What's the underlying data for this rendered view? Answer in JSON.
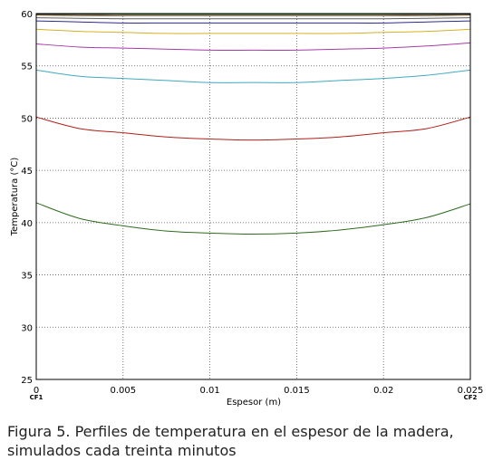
{
  "chart_data": {
    "type": "line",
    "xlabel": "Espesor (m)",
    "ylabel": "Temperatura (°C)",
    "xlim": [
      0,
      0.025
    ],
    "ylim": [
      25,
      60
    ],
    "x_ticks": [
      "0",
      "0.005",
      "0.01",
      "0.015",
      "0.02",
      "0.025"
    ],
    "y_ticks": [
      "25",
      "30",
      "35",
      "40",
      "45",
      "50",
      "55",
      "60"
    ],
    "x_end_labels": [
      "CF1",
      "CF2"
    ],
    "grid": "dotted",
    "x": [
      0,
      0.0025,
      0.005,
      0.0075,
      0.01,
      0.0125,
      0.015,
      0.0175,
      0.02,
      0.0225,
      0.025
    ],
    "series": [
      {
        "color": "#2e6b1e",
        "values": [
          41.9,
          40.4,
          39.7,
          39.2,
          39.0,
          38.9,
          39.0,
          39.3,
          39.8,
          40.5,
          41.8
        ]
      },
      {
        "color": "#b0201a",
        "values": [
          50.1,
          49.0,
          48.6,
          48.2,
          48.0,
          47.9,
          48.0,
          48.2,
          48.6,
          49.0,
          50.1
        ]
      },
      {
        "color": "#3fa9c0",
        "values": [
          54.6,
          54.0,
          53.8,
          53.6,
          53.4,
          53.4,
          53.4,
          53.6,
          53.8,
          54.1,
          54.6
        ]
      },
      {
        "color": "#a83aa8",
        "values": [
          57.1,
          56.8,
          56.7,
          56.6,
          56.5,
          56.5,
          56.5,
          56.6,
          56.7,
          56.9,
          57.2
        ]
      },
      {
        "color": "#d6b21f",
        "values": [
          58.5,
          58.3,
          58.2,
          58.1,
          58.1,
          58.1,
          58.1,
          58.1,
          58.2,
          58.3,
          58.5
        ]
      },
      {
        "color": "#2b2b8c",
        "values": [
          59.3,
          59.2,
          59.1,
          59.1,
          59.1,
          59.1,
          59.1,
          59.1,
          59.1,
          59.2,
          59.3
        ]
      },
      {
        "color": "#5e5e5e",
        "values": [
          59.6,
          59.55,
          59.5,
          59.5,
          59.5,
          59.5,
          59.5,
          59.5,
          59.5,
          59.55,
          59.6
        ]
      },
      {
        "color": "#7a5a2a",
        "values": [
          59.85,
          59.8,
          59.8,
          59.8,
          59.8,
          59.8,
          59.8,
          59.8,
          59.8,
          59.8,
          59.85
        ]
      },
      {
        "color": "#111111",
        "values": [
          59.95,
          59.92,
          59.92,
          59.92,
          59.92,
          59.92,
          59.92,
          59.92,
          59.92,
          59.92,
          59.95
        ]
      },
      {
        "color": "#3a8a3a",
        "values": [
          60.0,
          59.98,
          59.97,
          59.97,
          59.97,
          59.97,
          59.97,
          59.97,
          59.97,
          59.98,
          60.0
        ]
      }
    ]
  },
  "caption": {
    "line1": "Figura 5. Perfiles de temperatura en el espesor de la madera,",
    "line2": "simulados cada treinta minutos"
  }
}
